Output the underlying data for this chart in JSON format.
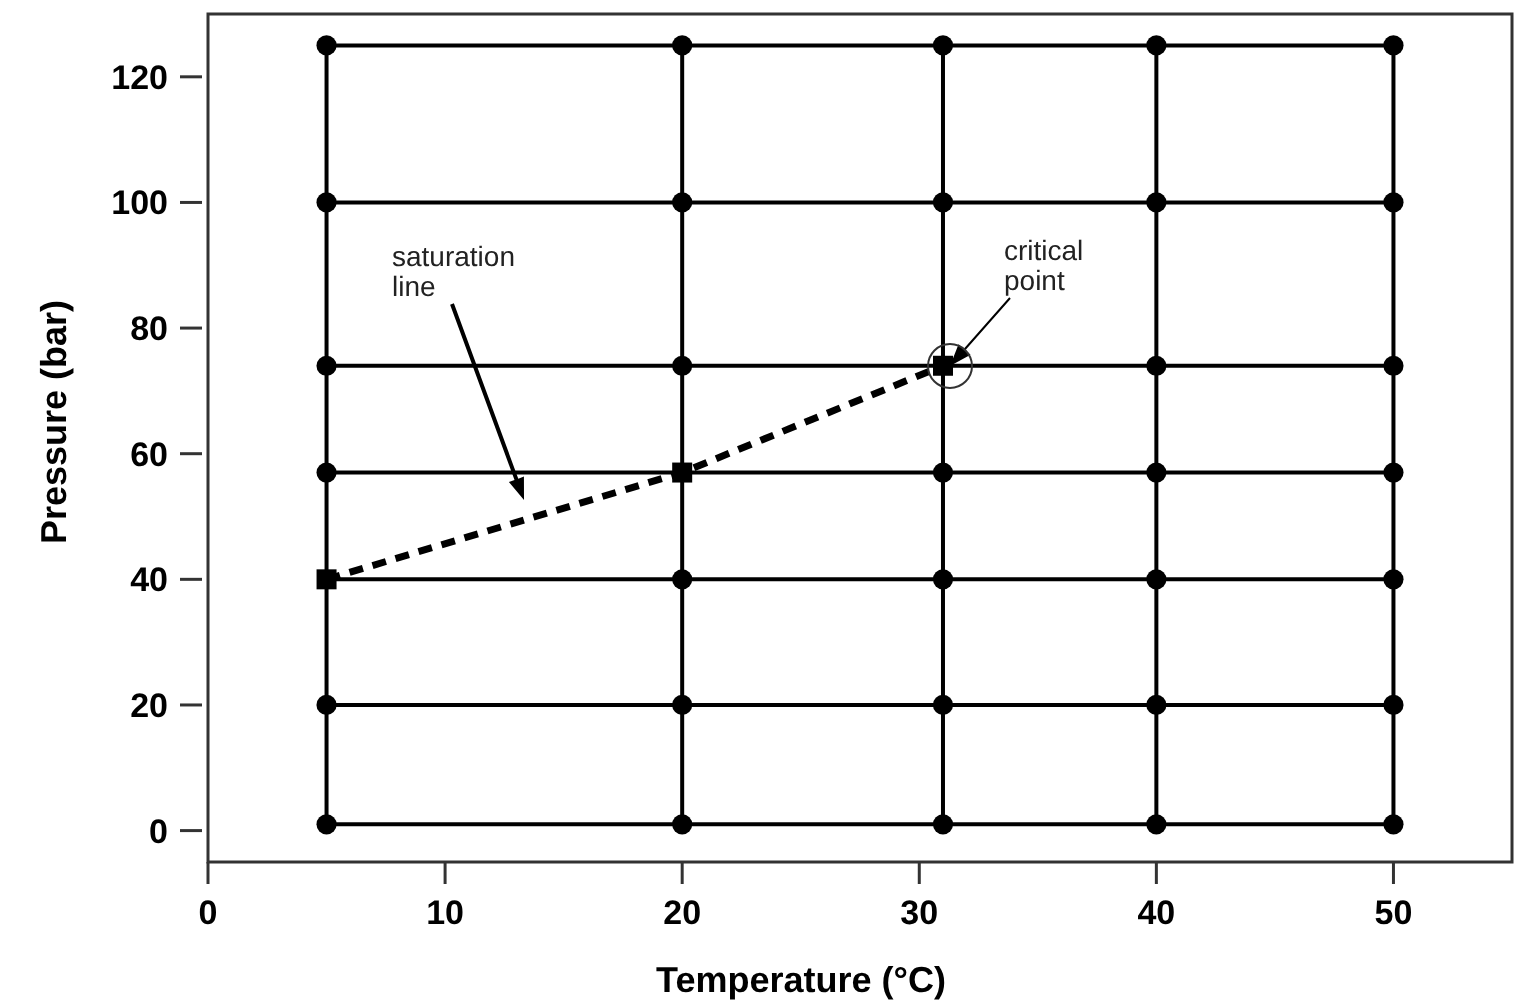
{
  "chart_data": {
    "type": "line",
    "xlabel": "Temperature (°C)",
    "ylabel": "Pressure (bar)",
    "xlim": [
      0,
      55
    ],
    "ylim": [
      -5,
      130
    ],
    "xticks": [
      0,
      10,
      20,
      30,
      40,
      50
    ],
    "yticks": [
      0,
      20,
      40,
      60,
      80,
      100,
      120
    ],
    "grid": false,
    "series": [
      {
        "color": "#000000",
        "marker": "none",
        "line_style": "solid",
        "x": [
          5,
          20,
          31,
          40,
          50
        ],
        "values": [
          1,
          1,
          1,
          1,
          1
        ]
      },
      {
        "type": "line",
        "color": "#000000",
        "marker": "none",
        "line_style": "solid",
        "x": [
          5,
          20,
          31,
          40,
          50
        ],
        "values": [
          20,
          20,
          20,
          20,
          20
        ]
      },
      {
        "type": "line",
        "color": "#000000",
        "marker": "none",
        "line_style": "solid",
        "x": [
          5,
          20,
          31,
          40,
          50
        ],
        "values": [
          40,
          40,
          40,
          40,
          40
        ]
      },
      {
        "type": "line",
        "color": "#000000",
        "marker": "none",
        "line_style": "solid",
        "x": [
          5,
          20,
          31,
          40,
          50
        ],
        "values": [
          57,
          57,
          57,
          57,
          57
        ]
      },
      {
        "type": "line",
        "color": "#000000",
        "marker": "none",
        "line_style": "solid",
        "x": [
          5,
          20,
          31,
          40,
          50
        ],
        "values": [
          74,
          74,
          74,
          74,
          74
        ]
      },
      {
        "type": "line",
        "color": "#000000",
        "marker": "none",
        "line_style": "solid",
        "x": [
          5,
          20,
          31,
          40,
          50
        ],
        "values": [
          100,
          100,
          100,
          100,
          100
        ]
      },
      {
        "type": "line",
        "color": "#000000",
        "marker": "none",
        "line_style": "solid",
        "x": [
          5,
          20,
          31,
          40,
          50
        ],
        "values": [
          125,
          125,
          125,
          125,
          125
        ]
      },
      {
        "type": "line",
        "color": "#000000",
        "marker": "none",
        "line_style": "solid",
        "x": [
          5,
          5,
          5,
          5,
          5,
          5,
          5
        ],
        "values": [
          1,
          20,
          40,
          57,
          74,
          100,
          125
        ]
      },
      {
        "type": "line",
        "color": "#000000",
        "marker": "none",
        "line_style": "solid",
        "x": [
          20,
          20,
          20,
          20,
          20,
          20,
          20
        ],
        "values": [
          1,
          20,
          40,
          57,
          74,
          100,
          125
        ]
      },
      {
        "type": "line",
        "color": "#000000",
        "marker": "none",
        "line_style": "solid",
        "x": [
          31,
          31,
          31,
          31,
          31,
          31,
          31
        ],
        "values": [
          1,
          20,
          40,
          57,
          74,
          100,
          125
        ]
      },
      {
        "type": "line",
        "color": "#000000",
        "marker": "none",
        "line_style": "solid",
        "x": [
          40,
          40,
          40,
          40,
          40,
          40,
          40
        ],
        "values": [
          1,
          20,
          40,
          57,
          74,
          100,
          125
        ]
      },
      {
        "type": "line",
        "color": "#000000",
        "marker": "none",
        "line_style": "solid",
        "x": [
          50,
          50,
          50,
          50,
          50,
          50,
          50
        ],
        "values": [
          1,
          20,
          40,
          57,
          74,
          100,
          125
        ]
      },
      {
        "type": "scatter",
        "color": "#000000",
        "marker": "circle",
        "x": [
          5,
          5,
          5,
          5,
          5,
          5,
          20,
          20,
          20,
          20,
          20,
          20,
          31,
          31,
          31,
          31,
          31,
          31,
          40,
          40,
          40,
          40,
          40,
          40,
          40,
          50,
          50,
          50,
          50,
          50,
          50,
          50
        ],
        "values": [
          1,
          20,
          57,
          74,
          100,
          125,
          1,
          20,
          40,
          74,
          100,
          125,
          1,
          20,
          40,
          57,
          100,
          125,
          1,
          20,
          40,
          57,
          74,
          100,
          125,
          1,
          20,
          40,
          57,
          74,
          100,
          125
        ]
      },
      {
        "type": "line",
        "color": "#000000",
        "marker": "none",
        "line_style": "dashed",
        "x": [
          5,
          20,
          31
        ],
        "values": [
          40,
          57,
          74
        ]
      },
      {
        "type": "scatter",
        "color": "#000000",
        "marker": "square",
        "x": [
          5,
          20,
          31
        ],
        "values": [
          40,
          57,
          74
        ]
      }
    ],
    "annotations": [
      "saturation line",
      "critical point"
    ]
  }
}
